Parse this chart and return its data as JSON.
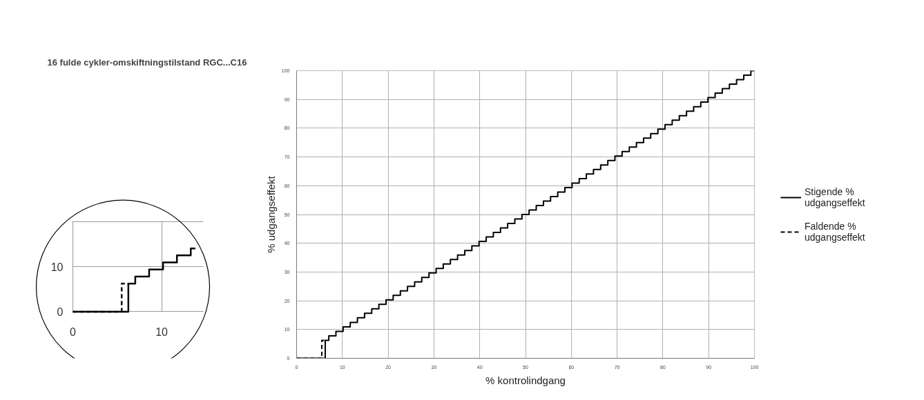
{
  "chart_data": [
    {
      "type": "step",
      "xlabel": "% kontrolindgang",
      "ylabel": "% udgangseffekt",
      "xlim": [
        0,
        100
      ],
      "ylim": [
        0,
        100
      ],
      "xticks": [
        0,
        10,
        20,
        30,
        40,
        50,
        60,
        70,
        80,
        90,
        100
      ],
      "yticks": [
        0,
        10,
        20,
        30,
        40,
        50,
        60,
        70,
        80,
        90,
        100
      ],
      "grid": true,
      "legend": "right",
      "series": [
        {
          "name": "Stigende % udgangseffekt",
          "color": "#000000",
          "line_style": "solid",
          "x": [
            0,
            6.25,
            7.03,
            8.59,
            10.16,
            11.72,
            13.28,
            14.84,
            16.41,
            17.97,
            19.53,
            21.09,
            22.66,
            24.22,
            25.78,
            27.34,
            28.91,
            30.47,
            32.03,
            33.59,
            35.16,
            36.72,
            38.28,
            39.84,
            41.41,
            42.97,
            44.53,
            46.09,
            47.66,
            49.22,
            50.78,
            52.34,
            53.91,
            55.47,
            57.03,
            58.59,
            60.16,
            61.72,
            63.28,
            64.84,
            66.41,
            67.97,
            69.53,
            71.09,
            72.66,
            74.22,
            75.78,
            77.34,
            78.91,
            80.47,
            82.03,
            83.59,
            85.16,
            86.72,
            88.28,
            89.84,
            91.41,
            92.97,
            94.53,
            96.09,
            97.66,
            99.22,
            100
          ],
          "values": [
            0,
            6.25,
            7.81,
            9.38,
            10.94,
            12.5,
            14.06,
            15.63,
            17.19,
            18.75,
            20.31,
            21.88,
            23.44,
            25,
            26.56,
            28.13,
            29.69,
            31.25,
            32.81,
            34.38,
            35.94,
            37.5,
            39.06,
            40.63,
            42.19,
            43.75,
            45.31,
            46.88,
            48.44,
            50,
            51.56,
            53.13,
            54.69,
            56.25,
            57.81,
            59.38,
            60.94,
            62.5,
            64.06,
            65.63,
            67.19,
            68.75,
            70.31,
            71.88,
            73.44,
            75,
            76.56,
            78.13,
            79.69,
            81.25,
            82.81,
            84.38,
            85.94,
            87.5,
            89.06,
            90.63,
            92.19,
            93.75,
            95.31,
            96.88,
            98.44,
            100,
            100
          ]
        },
        {
          "name": "Faldende % udgangseffekt",
          "color": "#000000",
          "line_style": "dashed",
          "x": [
            0,
            5.5,
            6.25
          ],
          "values": [
            0,
            6.25,
            6.25
          ]
        }
      ]
    },
    {
      "type": "step",
      "title": "16 fulde cykler-omskiftningstilstand RGC...C16",
      "xlim": [
        0,
        14.7
      ],
      "ylim": [
        0,
        20.1
      ],
      "xticks": [
        0,
        10
      ],
      "yticks": [
        0,
        10,
        {
          "value": 20,
          "label": null
        }
      ],
      "grid": true,
      "series": [
        {
          "color": "#000000",
          "line_style": "solid",
          "x": [
            0,
            6.25,
            7.03,
            8.59,
            10.16,
            11.72,
            13.28,
            13.8
          ],
          "values": [
            0,
            6.25,
            7.81,
            9.38,
            10.94,
            12.5,
            14.06,
            14.06
          ]
        },
        {
          "color": "#000000",
          "line_style": "dashed",
          "x": [
            0,
            5.5,
            6.25
          ],
          "values": [
            0,
            6.25,
            6.25
          ]
        }
      ]
    }
  ]
}
